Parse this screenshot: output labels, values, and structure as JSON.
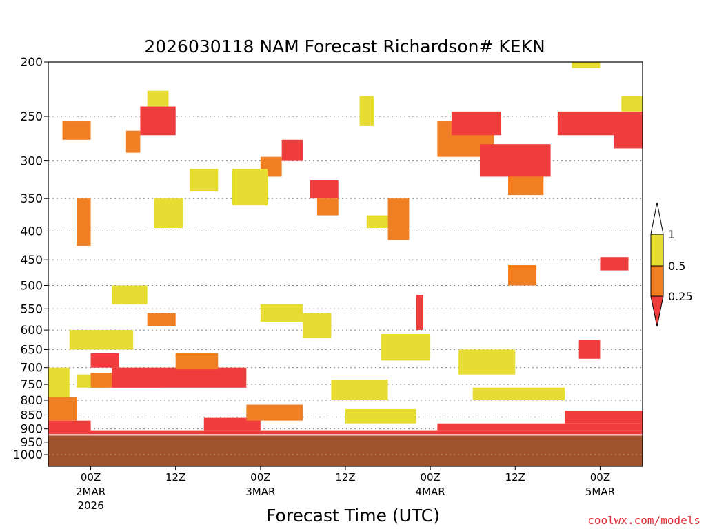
{
  "chart_data": {
    "type": "heatmap",
    "title": "2026030118 NAM Forecast Richardson# KEKN",
    "xlabel": "Forecast Time (UTC)",
    "ylabel": "",
    "credit": "coolwx.com/models",
    "yscale": "log",
    "ylim": [
      1000,
      200
    ],
    "y_ticks": [
      "200",
      "250",
      "300",
      "350",
      "400",
      "450",
      "500",
      "550",
      "600",
      "650",
      "700",
      "750",
      "800",
      "850",
      "900",
      "950",
      "1000"
    ],
    "x_ticks": [
      {
        "label": "00Z",
        "sub": "2MAR",
        "year": "2026",
        "hour": 6
      },
      {
        "label": "12Z",
        "sub": "",
        "year": "",
        "hour": 18
      },
      {
        "label": "00Z",
        "sub": "3MAR",
        "year": "",
        "hour": 30
      },
      {
        "label": "12Z",
        "sub": "",
        "year": "",
        "hour": 42
      },
      {
        "label": "00Z",
        "sub": "4MAR",
        "year": "",
        "hour": 54
      },
      {
        "label": "12Z",
        "sub": "",
        "year": "",
        "hour": 66
      },
      {
        "label": "00Z",
        "sub": "5MAR",
        "year": "",
        "hour": 78
      }
    ],
    "xlim_hours": [
      0,
      84
    ],
    "legend": {
      "position": "right",
      "classes": [
        {
          "range": "< 0.25",
          "color": "#f03c3c"
        },
        {
          "range": "0.25 - 0.5",
          "color": "#f07f24"
        },
        {
          "range": "0.5 - 1",
          "color": "#e6dc32"
        },
        {
          "range": "> 1",
          "color": "#ffffff"
        }
      ],
      "ticks": [
        "1",
        "0.5",
        "0.25"
      ]
    },
    "ground_color": "#a0522d",
    "surface_pressure": 925,
    "cells": [
      {
        "t0": 0,
        "t1": 6,
        "p0": 925,
        "p1": 870,
        "c": "#f03c3c"
      },
      {
        "t0": 0,
        "t1": 4,
        "p0": 870,
        "p1": 790,
        "c": "#f07f24"
      },
      {
        "t0": 0,
        "t1": 3,
        "p0": 790,
        "p1": 700,
        "c": "#e6dc32"
      },
      {
        "t0": 4,
        "t1": 8,
        "p0": 760,
        "p1": 720,
        "c": "#e6dc32"
      },
      {
        "t0": 6,
        "t1": 16,
        "p0": 760,
        "p1": 715,
        "c": "#f07f24"
      },
      {
        "t0": 9,
        "t1": 28,
        "p0": 760,
        "p1": 700,
        "c": "#f03c3c"
      },
      {
        "t0": 0,
        "t1": 84,
        "p0": 925,
        "p1": 905,
        "c": "#f03c3c"
      },
      {
        "t0": 22,
        "t1": 30,
        "p0": 905,
        "p1": 860,
        "c": "#f03c3c"
      },
      {
        "t0": 55,
        "t1": 84,
        "p0": 905,
        "p1": 880,
        "c": "#f03c3c"
      },
      {
        "t0": 73,
        "t1": 84,
        "p0": 880,
        "p1": 835,
        "c": "#f03c3c"
      },
      {
        "t0": 13,
        "t1": 18,
        "p0": 270,
        "p1": 240,
        "c": "#f03c3c"
      },
      {
        "t0": 11,
        "t1": 13,
        "p0": 290,
        "p1": 265,
        "c": "#f07f24"
      },
      {
        "t0": 14,
        "t1": 17,
        "p0": 240,
        "p1": 225,
        "c": "#e6dc32"
      },
      {
        "t0": 37,
        "t1": 41,
        "p0": 350,
        "p1": 325,
        "c": "#f03c3c"
      },
      {
        "t0": 38,
        "t1": 41,
        "p0": 375,
        "p1": 350,
        "c": "#f07f24"
      },
      {
        "t0": 30,
        "t1": 33,
        "p0": 320,
        "p1": 295,
        "c": "#f07f24"
      },
      {
        "t0": 55,
        "t1": 63,
        "p0": 295,
        "p1": 255,
        "c": "#f07f24"
      },
      {
        "t0": 57,
        "t1": 64,
        "p0": 270,
        "p1": 245,
        "c": "#f03c3c"
      },
      {
        "t0": 61,
        "t1": 71,
        "p0": 320,
        "p1": 280,
        "c": "#f03c3c"
      },
      {
        "t0": 65,
        "t1": 70,
        "p0": 345,
        "p1": 320,
        "c": "#f07f24"
      },
      {
        "t0": 72,
        "t1": 84,
        "p0": 270,
        "p1": 245,
        "c": "#f03c3c"
      },
      {
        "t0": 80,
        "t1": 84,
        "p0": 285,
        "p1": 260,
        "c": "#f03c3c"
      },
      {
        "t0": 48,
        "t1": 51,
        "p0": 415,
        "p1": 350,
        "c": "#f07f24"
      },
      {
        "t0": 45,
        "t1": 48,
        "p0": 395,
        "p1": 375,
        "c": "#e6dc32"
      },
      {
        "t0": 52,
        "t1": 53,
        "p0": 600,
        "p1": 520,
        "c": "#f03c3c"
      },
      {
        "t0": 75,
        "t1": 78,
        "p0": 675,
        "p1": 625,
        "c": "#f03c3c"
      },
      {
        "t0": 78,
        "t1": 82,
        "p0": 470,
        "p1": 445,
        "c": "#f03c3c"
      },
      {
        "t0": 65,
        "t1": 69,
        "p0": 500,
        "p1": 460,
        "c": "#f07f24"
      },
      {
        "t0": 15,
        "t1": 19,
        "p0": 395,
        "p1": 350,
        "c": "#e6dc32"
      },
      {
        "t0": 26,
        "t1": 31,
        "p0": 360,
        "p1": 310,
        "c": "#e6dc32"
      },
      {
        "t0": 4,
        "t1": 6,
        "p0": 425,
        "p1": 350,
        "c": "#f07f24"
      },
      {
        "t0": 9,
        "t1": 14,
        "p0": 540,
        "p1": 500,
        "c": "#e6dc32"
      },
      {
        "t0": 14,
        "t1": 18,
        "p0": 590,
        "p1": 560,
        "c": "#f07f24"
      },
      {
        "t0": 30,
        "t1": 36,
        "p0": 580,
        "p1": 540,
        "c": "#e6dc32"
      },
      {
        "t0": 36,
        "t1": 40,
        "p0": 620,
        "p1": 560,
        "c": "#e6dc32"
      },
      {
        "t0": 47,
        "t1": 54,
        "p0": 680,
        "p1": 610,
        "c": "#e6dc32"
      },
      {
        "t0": 58,
        "t1": 66,
        "p0": 720,
        "p1": 650,
        "c": "#e6dc32"
      },
      {
        "t0": 60,
        "t1": 73,
        "p0": 800,
        "p1": 760,
        "c": "#e6dc32"
      },
      {
        "t0": 3,
        "t1": 12,
        "p0": 650,
        "p1": 600,
        "c": "#e6dc32"
      },
      {
        "t0": 6,
        "t1": 10,
        "p0": 700,
        "p1": 660,
        "c": "#f03c3c"
      },
      {
        "t0": 18,
        "t1": 24,
        "p0": 705,
        "p1": 660,
        "c": "#f07f24"
      },
      {
        "t0": 40,
        "t1": 48,
        "p0": 800,
        "p1": 735,
        "c": "#e6dc32"
      },
      {
        "t0": 28,
        "t1": 36,
        "p0": 870,
        "p1": 815,
        "c": "#f07f24"
      },
      {
        "t0": 42,
        "t1": 52,
        "p0": 880,
        "p1": 830,
        "c": "#e6dc32"
      },
      {
        "t0": 2,
        "t1": 6,
        "p0": 275,
        "p1": 255,
        "c": "#f07f24"
      },
      {
        "t0": 44,
        "t1": 46,
        "p0": 260,
        "p1": 230,
        "c": "#e6dc32"
      },
      {
        "t0": 20,
        "t1": 24,
        "p0": 340,
        "p1": 310,
        "c": "#e6dc32"
      },
      {
        "t0": 33,
        "t1": 36,
        "p0": 300,
        "p1": 275,
        "c": "#f03c3c"
      },
      {
        "t0": 81,
        "t1": 84,
        "p0": 245,
        "p1": 230,
        "c": "#e6dc32"
      },
      {
        "t0": 74,
        "t1": 78,
        "p0": 205,
        "p1": 200,
        "c": "#e6dc32"
      }
    ]
  }
}
